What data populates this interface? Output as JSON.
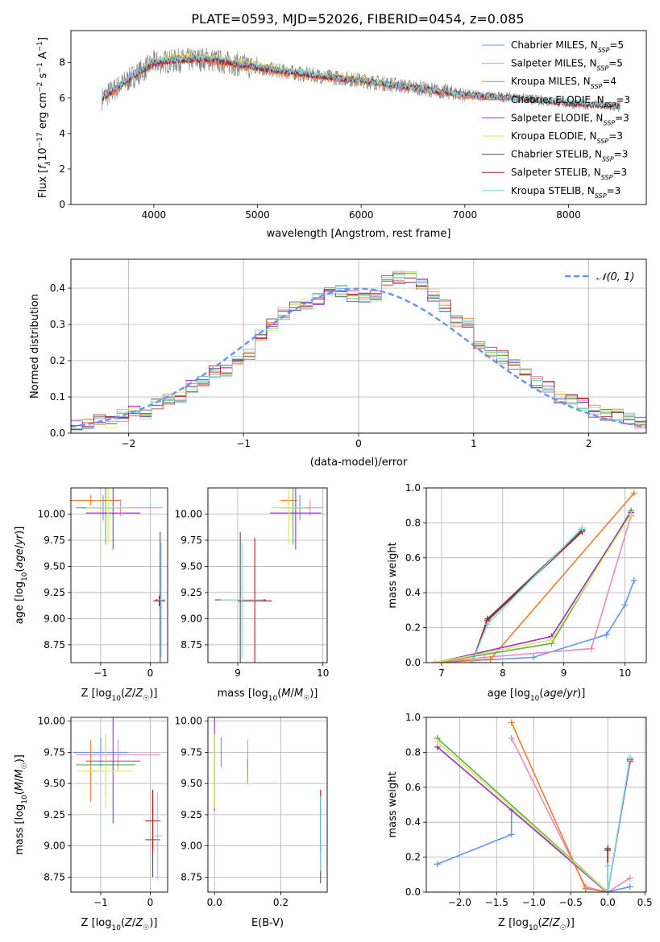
{
  "figure": {
    "title": "PLATE=0593, MJD=52026, FIBERID=0454, z=0.085"
  },
  "colors": {
    "chabrier_miles": "#6495ed",
    "salpeter_miles": "#e68ac4",
    "kroupa_miles": "#ee7d2d",
    "chabrier_elodie": "#5ab04c",
    "salpeter_elodie": "#9b30c4",
    "kroupa_elodie": "#e0e85a",
    "chabrier_stelib": "#505050",
    "salpeter_stelib": "#b01818",
    "kroupa_stelib": "#7dd8e8",
    "data_grey": "#808080",
    "normal_curve": "#6495ed",
    "grid": "#b0b0b0"
  },
  "chart_data": [
    {
      "id": "spectrum",
      "type": "line",
      "xlabel": "wavelength [Angstrom, rest frame]",
      "ylabel": "Flux [f_λ 10^-17 erg cm^-2 s^-1 A^-1]",
      "xlim": [
        3200,
        8750
      ],
      "ylim": [
        0,
        9.8
      ],
      "xticks": [
        4000,
        5000,
        6000,
        7000,
        8000
      ],
      "yticks": [
        0,
        2,
        4,
        6,
        8
      ],
      "grid": false,
      "legend_position": "top-right",
      "series": [
        {
          "name": "Chabrier MILES, N_SSP=5",
          "key": "chabrier_miles",
          "x": [
            3540,
            3600,
            3800,
            4000,
            4200,
            4500,
            5000,
            5500,
            6000,
            6500,
            7000,
            7400
          ],
          "y": [
            6.1,
            6.4,
            7.4,
            7.9,
            8.3,
            8.2,
            7.7,
            7.3,
            7.0,
            6.5,
            6.1,
            6.0
          ]
        },
        {
          "name": "Salpeter MILES, N_SSP=5",
          "key": "salpeter_miles",
          "x": [
            3540,
            3600,
            3800,
            4000,
            4200,
            4500,
            5000,
            5500,
            6000,
            6500,
            7000,
            7400
          ],
          "y": [
            6.0,
            6.3,
            7.3,
            7.8,
            8.2,
            8.1,
            7.7,
            7.3,
            7.0,
            6.5,
            6.1,
            6.0
          ]
        },
        {
          "name": "Kroupa MILES, N_SSP=4",
          "key": "kroupa_miles",
          "x": [
            3540,
            3600,
            3800,
            4000,
            4200,
            4500,
            5000,
            5500,
            6000,
            6500,
            7000,
            7400
          ],
          "y": [
            6.0,
            6.3,
            7.3,
            7.8,
            8.2,
            8.1,
            7.6,
            7.2,
            6.9,
            6.5,
            6.1,
            6.0
          ]
        },
        {
          "name": "Chabrier ELODIE, N_SSP=3",
          "key": "chabrier_elodie",
          "x": [
            3900,
            4000,
            4200,
            4500,
            5000,
            5500,
            6000,
            6500,
            6800
          ],
          "y": [
            7.6,
            8.0,
            8.3,
            8.3,
            7.8,
            7.3,
            7.0,
            6.6,
            6.3
          ]
        },
        {
          "name": "Salpeter ELODIE, N_SSP=3",
          "key": "salpeter_elodie",
          "x": [
            3900,
            4000,
            4200,
            4500,
            5000,
            5500,
            6000,
            6500,
            6800
          ],
          "y": [
            7.6,
            7.9,
            8.3,
            8.3,
            7.8,
            7.3,
            7.0,
            6.6,
            6.3
          ]
        },
        {
          "name": "Kroupa ELODIE, N_SSP=3",
          "key": "kroupa_elodie",
          "x": [
            3900,
            4000,
            4200,
            4500,
            5000,
            5500,
            6000,
            6500,
            6800
          ],
          "y": [
            7.7,
            8.0,
            8.4,
            8.4,
            7.9,
            7.4,
            7.1,
            6.6,
            6.3
          ]
        },
        {
          "name": "Chabrier STELIB, N_SSP=3",
          "key": "chabrier_stelib",
          "x": [
            3500,
            3700,
            4000,
            4500,
            5000,
            5500,
            6000,
            6500,
            7000,
            7500,
            8000,
            8500
          ],
          "y": [
            6.0,
            6.8,
            8.0,
            8.2,
            7.7,
            7.3,
            7.0,
            6.6,
            6.2,
            6.0,
            5.7,
            5.5
          ]
        },
        {
          "name": "Salpeter STELIB, N_SSP=3",
          "key": "salpeter_stelib",
          "x": [
            3500,
            3700,
            4000,
            4500,
            5000,
            5500,
            6000,
            6500,
            7000,
            7500,
            8000,
            8500
          ],
          "y": [
            6.0,
            6.8,
            8.0,
            8.2,
            7.7,
            7.3,
            7.0,
            6.6,
            6.2,
            6.0,
            5.7,
            5.5
          ]
        },
        {
          "name": "Kroupa STELIB, N_SSP=3",
          "key": "kroupa_stelib",
          "x": [
            3500,
            3700,
            4000,
            4500,
            5000,
            5500,
            6000,
            6500,
            7000,
            7500,
            8000,
            8500
          ],
          "y": [
            6.1,
            6.9,
            8.1,
            8.3,
            7.8,
            7.4,
            7.0,
            6.6,
            6.2,
            6.0,
            5.8,
            5.5
          ]
        }
      ]
    },
    {
      "id": "residuals",
      "type": "line",
      "xlabel": "(data-model)/error",
      "ylabel": "Normed distribution",
      "xlim": [
        -2.5,
        2.5
      ],
      "ylim": [
        0,
        0.48
      ],
      "xticks": [
        -2,
        -1,
        0,
        1,
        2
      ],
      "yticks": [
        0.0,
        0.1,
        0.2,
        0.3,
        0.4
      ],
      "grid": true,
      "legend_position": "top-right",
      "legend_label": "𝒩(0, 1)",
      "bin_edges": [
        -2.5,
        -2.4,
        -2.3,
        -2.2,
        -2.1,
        -2.0,
        -1.9,
        -1.8,
        -1.7,
        -1.6,
        -1.5,
        -1.4,
        -1.3,
        -1.2,
        -1.1,
        -1.0,
        -0.9,
        -0.8,
        -0.7,
        -0.6,
        -0.5,
        -0.4,
        -0.3,
        -0.2,
        -0.1,
        0.0,
        0.1,
        0.2,
        0.3,
        0.4,
        0.5,
        0.6,
        0.7,
        0.8,
        0.9,
        1.0,
        1.1,
        1.2,
        1.3,
        1.4,
        1.5,
        1.6,
        1.7,
        1.8,
        1.9,
        2.0,
        2.1,
        2.2,
        2.3,
        2.4,
        2.5
      ],
      "hist_base": [
        0.02,
        0.025,
        0.04,
        0.03,
        0.05,
        0.06,
        0.05,
        0.08,
        0.09,
        0.1,
        0.13,
        0.14,
        0.17,
        0.17,
        0.2,
        0.22,
        0.27,
        0.3,
        0.33,
        0.35,
        0.36,
        0.37,
        0.4,
        0.39,
        0.38,
        0.37,
        0.38,
        0.42,
        0.43,
        0.43,
        0.41,
        0.38,
        0.35,
        0.31,
        0.3,
        0.25,
        0.22,
        0.21,
        0.19,
        0.17,
        0.14,
        0.13,
        0.1,
        0.09,
        0.08,
        0.06,
        0.05,
        0.05,
        0.04,
        0.03
      ],
      "normal_curve": {
        "mean": 0,
        "sigma": 1
      }
    },
    {
      "id": "age-vs-Z",
      "type": "scatter",
      "xlabel": "Z [log10(Z/Z☉)]",
      "ylabel": "age  [log10(age/yr)]",
      "xlim": [
        -1.6,
        0.35
      ],
      "ylim": [
        8.58,
        10.25
      ],
      "xticks": [
        -1,
        0
      ],
      "yticks": [
        8.75,
        9.0,
        9.25,
        9.5,
        9.75,
        10.0
      ],
      "grid": true,
      "points": [
        {
          "key": "chabrier_miles",
          "x": -0.95,
          "y": 10.06,
          "xerr": 0.55,
          "yerr": 0.12
        },
        {
          "key": "salpeter_miles",
          "x": -0.6,
          "y": 10.06,
          "xerr": 0.85,
          "yerr": 0.08
        },
        {
          "key": "kroupa_miles",
          "x": -1.2,
          "y": 10.13,
          "xerr": 0.6,
          "yerr": 0.05
        },
        {
          "key": "chabrier_elodie",
          "x": -0.9,
          "y": 10.06,
          "xerr": 0.5,
          "yerr": 0.35
        },
        {
          "key": "salpeter_elodie",
          "x": -0.75,
          "y": 10.01,
          "xerr": 0.55,
          "yerr": 0.35
        },
        {
          "key": "kroupa_elodie",
          "x": -0.85,
          "y": 10.06,
          "xerr": 0.45,
          "yerr": 0.35
        },
        {
          "key": "chabrier_stelib",
          "x": 0.2,
          "y": 9.18,
          "xerr": 0.1,
          "yerr": 0.65
        },
        {
          "key": "salpeter_stelib",
          "x": 0.18,
          "y": 9.17,
          "xerr": 0.12,
          "yerr": 0.05
        },
        {
          "key": "kroupa_stelib",
          "x": 0.22,
          "y": 9.18,
          "xerr": 0.07,
          "yerr": 0.55
        }
      ]
    },
    {
      "id": "age-vs-mass",
      "type": "scatter",
      "xlabel": "mass [log10(M/M☉)]",
      "ylabel": "",
      "xlim": [
        8.65,
        10.05
      ],
      "ylim": [
        8.58,
        10.25
      ],
      "xticks": [
        9,
        10
      ],
      "yticks": [
        8.75,
        9.0,
        9.25,
        9.5,
        9.75,
        10.0
      ],
      "grid": true,
      "points": [
        {
          "key": "chabrier_miles",
          "x": 9.73,
          "y": 10.06,
          "xerr": 0.12,
          "yerr": 0.12
        },
        {
          "key": "salpeter_miles",
          "x": 9.85,
          "y": 10.06,
          "xerr": 0.15,
          "yerr": 0.08
        },
        {
          "key": "kroupa_miles",
          "x": 9.6,
          "y": 10.13,
          "xerr": 0.1,
          "yerr": 0.05
        },
        {
          "key": "chabrier_elodie",
          "x": 9.65,
          "y": 10.06,
          "xerr": 0.15,
          "yerr": 0.35
        },
        {
          "key": "salpeter_elodie",
          "x": 9.68,
          "y": 10.01,
          "xerr": 0.3,
          "yerr": 0.35
        },
        {
          "key": "kroupa_elodie",
          "x": 9.6,
          "y": 10.06,
          "xerr": 0.2,
          "yerr": 0.35
        },
        {
          "key": "chabrier_stelib",
          "x": 9.03,
          "y": 9.18,
          "xerr": 0.3,
          "yerr": 0.65
        },
        {
          "key": "salpeter_stelib",
          "x": 9.2,
          "y": 9.17,
          "xerr": 0.2,
          "yerr": 0.6
        },
        {
          "key": "kroupa_stelib",
          "x": 9.05,
          "y": 9.18,
          "xerr": 0.25,
          "yerr": 0.55
        }
      ]
    },
    {
      "id": "mass-weight-vs-age",
      "type": "line",
      "xlabel": "age  [log10(age/yr)]",
      "ylabel": "mass weight",
      "xlim": [
        6.75,
        10.35
      ],
      "ylim": [
        0,
        1.0
      ],
      "xticks": [
        7,
        8,
        9,
        10
      ],
      "yticks": [
        0.0,
        0.2,
        0.4,
        0.6,
        0.8,
        1.0
      ],
      "grid": true,
      "series": [
        {
          "key": "chabrier_miles",
          "x": [
            6.9,
            8.5,
            9.7,
            10.0,
            10.15
          ],
          "y": [
            0.0,
            0.03,
            0.16,
            0.33,
            0.47
          ]
        },
        {
          "key": "salpeter_miles",
          "x": [
            6.9,
            7.7,
            9.45,
            10.1
          ],
          "y": [
            0.0,
            0.03,
            0.08,
            0.84
          ]
        },
        {
          "key": "kroupa_miles",
          "x": [
            6.9,
            7.8,
            10.15
          ],
          "y": [
            0.0,
            0.02,
            0.97
          ]
        },
        {
          "key": "chabrier_elodie",
          "x": [
            6.9,
            8.8,
            10.1
          ],
          "y": [
            0.0,
            0.11,
            0.87
          ]
        },
        {
          "key": "salpeter_elodie",
          "x": [
            6.9,
            8.8,
            10.1
          ],
          "y": [
            0.0,
            0.15,
            0.86
          ]
        },
        {
          "key": "kroupa_elodie",
          "x": [
            6.9,
            8.8,
            10.1
          ],
          "y": [
            0.0,
            0.13,
            0.85
          ]
        },
        {
          "key": "chabrier_stelib",
          "x": [
            7.5,
            7.75,
            9.3
          ],
          "y": [
            0.0,
            0.25,
            0.76
          ]
        },
        {
          "key": "salpeter_stelib",
          "x": [
            7.5,
            7.75,
            9.3
          ],
          "y": [
            0.0,
            0.24,
            0.75
          ]
        },
        {
          "key": "kroupa_stelib",
          "x": [
            7.5,
            7.75,
            9.3
          ],
          "y": [
            0.0,
            0.22,
            0.77
          ]
        }
      ]
    },
    {
      "id": "mass-vs-Z",
      "type": "scatter",
      "xlabel": "Z [log10(Z/Z☉)]",
      "ylabel": "mass [log10(M/M☉)]",
      "xlim": [
        -1.6,
        0.35
      ],
      "ylim": [
        8.63,
        10.03
      ],
      "xticks": [
        -1,
        0
      ],
      "yticks": [
        8.75,
        9.0,
        9.25,
        9.5,
        9.75,
        10.0
      ],
      "grid": true,
      "points": [
        {
          "key": "chabrier_miles",
          "x": -1.0,
          "y": 9.75,
          "xerr": 0.55,
          "yerr": 0.12
        },
        {
          "key": "salpeter_miles",
          "x": -0.65,
          "y": 9.73,
          "xerr": 0.85,
          "yerr": 0.12
        },
        {
          "key": "kroupa_miles",
          "x": -1.2,
          "y": 9.6,
          "xerr": 0.1,
          "yerr": 0.25
        },
        {
          "key": "chabrier_elodie",
          "x": -0.9,
          "y": 9.65,
          "xerr": 0.6,
          "yerr": 0.25
        },
        {
          "key": "salpeter_elodie",
          "x": -0.75,
          "y": 9.68,
          "xerr": 0.55,
          "yerr": 0.5
        },
        {
          "key": "kroupa_elodie",
          "x": -0.9,
          "y": 9.6,
          "xerr": 0.55,
          "yerr": 0.3
        },
        {
          "key": "chabrier_stelib",
          "x": 0.05,
          "y": 9.05,
          "xerr": 0.15,
          "yerr": 0.3
        },
        {
          "key": "salpeter_stelib",
          "x": 0.05,
          "y": 9.2,
          "xerr": 0.15,
          "yerr": 0.25
        },
        {
          "key": "kroupa_stelib",
          "x": 0.15,
          "y": 9.08,
          "xerr": 0.1,
          "yerr": 0.35
        }
      ]
    },
    {
      "id": "mass-vs-ebv",
      "type": "scatter",
      "xlabel": "E(B-V)",
      "ylabel": "",
      "xlim": [
        -0.02,
        0.34
      ],
      "ylim": [
        8.63,
        10.03
      ],
      "xticks": [
        0.0,
        0.2
      ],
      "yticks": [
        8.75,
        9.0,
        9.25,
        9.5,
        9.75,
        10.0
      ],
      "grid": true,
      "points": [
        {
          "key": "chabrier_miles",
          "x": 0.02,
          "y": 9.75,
          "xerr": 0.0,
          "yerr": 0.12
        },
        {
          "key": "salpeter_miles",
          "x": 0.1,
          "y": 9.73,
          "xerr": 0.0,
          "yerr": 0.12
        },
        {
          "key": "kroupa_miles",
          "x": 0.1,
          "y": 9.6,
          "xerr": 0.0,
          "yerr": 0.1
        },
        {
          "key": "chabrier_elodie",
          "x": 0.0,
          "y": 9.65,
          "xerr": 0.0,
          "yerr": 0.25
        },
        {
          "key": "salpeter_elodie",
          "x": 0.0,
          "y": 9.68,
          "xerr": 0.0,
          "yerr": 0.4
        },
        {
          "key": "kroupa_elodie",
          "x": 0.0,
          "y": 9.6,
          "xerr": 0.0,
          "yerr": 0.3
        },
        {
          "key": "chabrier_stelib",
          "x": 0.32,
          "y": 9.05,
          "xerr": 0.0,
          "yerr": 0.35
        },
        {
          "key": "salpeter_stelib",
          "x": 0.32,
          "y": 9.2,
          "xerr": 0.0,
          "yerr": 0.25
        },
        {
          "key": "kroupa_stelib",
          "x": 0.32,
          "y": 9.1,
          "xerr": 0.0,
          "yerr": 0.3
        }
      ]
    },
    {
      "id": "mass-weight-vs-Z",
      "type": "line",
      "xlabel": "Z [log10(Z/Z☉)]",
      "ylabel": "mass weight",
      "xlim": [
        -2.45,
        0.52
      ],
      "ylim": [
        0,
        1.0
      ],
      "xticks": [
        -2.0,
        -1.5,
        -1.0,
        -0.5,
        0.0,
        0.5
      ],
      "yticks": [
        0.0,
        0.2,
        0.4,
        0.6,
        0.8,
        1.0
      ],
      "grid": true,
      "series": [
        {
          "key": "chabrier_miles",
          "x": [
            -2.3,
            -1.3,
            -1.3,
            -0.02,
            0.3
          ],
          "y": [
            0.16,
            0.33,
            0.47,
            0.0,
            0.03
          ]
        },
        {
          "key": "salpeter_miles",
          "x": [
            -1.3,
            -0.3,
            0.0,
            0.3
          ],
          "y": [
            0.88,
            0.03,
            0.0,
            0.08
          ]
        },
        {
          "key": "kroupa_miles",
          "x": [
            -1.3,
            -0.3,
            0.0
          ],
          "y": [
            0.97,
            0.02,
            0.0
          ]
        },
        {
          "key": "chabrier_elodie",
          "x": [
            -2.3,
            0.0
          ],
          "y": [
            0.88,
            0.0
          ]
        },
        {
          "key": "salpeter_elodie",
          "x": [
            -2.3,
            0.0
          ],
          "y": [
            0.83,
            0.0
          ]
        },
        {
          "key": "kroupa_elodie",
          "x": [
            -2.3,
            0.0
          ],
          "y": [
            0.86,
            0.0
          ]
        },
        {
          "key": "chabrier_stelib",
          "x": [
            0.0,
            0.0,
            0.3
          ],
          "y": [
            0.25,
            0.0,
            0.76
          ]
        },
        {
          "key": "salpeter_stelib",
          "x": [
            0.0,
            0.0,
            0.3
          ],
          "y": [
            0.24,
            0.0,
            0.75
          ]
        },
        {
          "key": "kroupa_stelib",
          "x": [
            0.0,
            0.0,
            0.3
          ],
          "y": [
            0.15,
            0.0,
            0.77
          ]
        }
      ]
    }
  ]
}
